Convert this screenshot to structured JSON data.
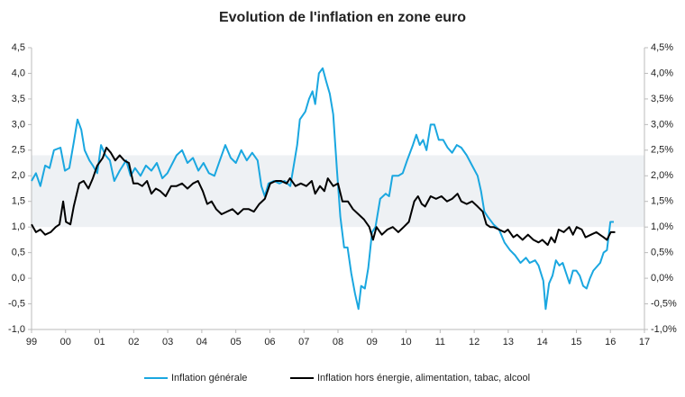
{
  "chart_data": {
    "type": "line",
    "title": "Evolution de l'inflation en zone  euro",
    "xlim": [
      1999,
      2017
    ],
    "xticks": [
      {
        "value": 1999,
        "label": "99"
      },
      {
        "value": 2000,
        "label": "00"
      },
      {
        "value": 2001,
        "label": "01"
      },
      {
        "value": 2002,
        "label": "02"
      },
      {
        "value": 2003,
        "label": "03"
      },
      {
        "value": 2004,
        "label": "04"
      },
      {
        "value": 2005,
        "label": "05"
      },
      {
        "value": 2006,
        "label": "06"
      },
      {
        "value": 2007,
        "label": "07"
      },
      {
        "value": 2008,
        "label": "08"
      },
      {
        "value": 2009,
        "label": "09"
      },
      {
        "value": 2010,
        "label": "10"
      },
      {
        "value": 2011,
        "label": "11"
      },
      {
        "value": 2012,
        "label": "12"
      },
      {
        "value": 2013,
        "label": "13"
      },
      {
        "value": 2014,
        "label": "14"
      },
      {
        "value": 2015,
        "label": "15"
      },
      {
        "value": 2016,
        "label": "16"
      },
      {
        "value": 2017,
        "label": "17"
      }
    ],
    "ylim": [
      -1,
      4.5
    ],
    "yticks": [
      {
        "value": -1,
        "label": "-1,0"
      },
      {
        "value": -0.5,
        "label": "-0,5"
      },
      {
        "value": 0,
        "label": "0,0"
      },
      {
        "value": 0.5,
        "label": "0,5"
      },
      {
        "value": 1,
        "label": "1,0"
      },
      {
        "value": 1.5,
        "label": "1,5"
      },
      {
        "value": 2,
        "label": "2,0"
      },
      {
        "value": 2.5,
        "label": "2,5"
      },
      {
        "value": 3,
        "label": "3,0"
      },
      {
        "value": 3.5,
        "label": "3,5"
      },
      {
        "value": 4,
        "label": "4,0"
      },
      {
        "value": 4.5,
        "label": "4,5"
      }
    ],
    "y2lim": [
      -1,
      4.5
    ],
    "y2ticks": [
      {
        "value": -1,
        "label": "-1,0%"
      },
      {
        "value": -0.5,
        "label": "-0,5%"
      },
      {
        "value": 0,
        "label": "0,0%"
      },
      {
        "value": 0.5,
        "label": "0,5%"
      },
      {
        "value": 1,
        "label": "1,0%"
      },
      {
        "value": 1.5,
        "label": "1,5%"
      },
      {
        "value": 2,
        "label": "2,0%"
      },
      {
        "value": 2.5,
        "label": "2,5%"
      },
      {
        "value": 3,
        "label": "3,0%"
      },
      {
        "value": 3.5,
        "label": "3,5%"
      },
      {
        "value": 4,
        "label": "4,0%"
      },
      {
        "value": 4.5,
        "label": "4,5%"
      }
    ],
    "band": {
      "ylim": [
        1,
        2.4
      ],
      "color": "#eef1f4"
    },
    "series": [
      {
        "name": "Inflation générale",
        "color": "#1aa7e0",
        "x": [
          1999.0,
          1999.13,
          1999.26,
          1999.4,
          1999.53,
          1999.66,
          1999.85,
          1999.98,
          2000.11,
          2000.24,
          2000.35,
          2000.46,
          2000.56,
          2000.7,
          2000.8,
          2000.93,
          2001.04,
          2001.17,
          2001.3,
          2001.43,
          2001.59,
          2001.78,
          2001.91,
          2002.04,
          2002.2,
          2002.36,
          2002.52,
          2002.68,
          2002.84,
          2002.99,
          2003.26,
          2003.42,
          2003.58,
          2003.74,
          2003.9,
          2004.05,
          2004.21,
          2004.37,
          2004.53,
          2004.69,
          2004.85,
          2005.0,
          2005.16,
          2005.32,
          2005.48,
          2005.64,
          2005.75,
          2005.85,
          2005.96,
          2006.12,
          2006.28,
          2006.43,
          2006.6,
          2006.7,
          2006.8,
          2006.88,
          2007.04,
          2007.15,
          2007.25,
          2007.33,
          2007.44,
          2007.55,
          2007.65,
          2007.76,
          2007.86,
          2007.97,
          2008.07,
          2008.18,
          2008.28,
          2008.39,
          2008.5,
          2008.6,
          2008.68,
          2008.79,
          2008.89,
          2009.0,
          2009.1,
          2009.24,
          2009.4,
          2009.5,
          2009.6,
          2009.77,
          2009.9,
          2010.03,
          2010.2,
          2010.3,
          2010.4,
          2010.5,
          2010.6,
          2010.72,
          2010.83,
          2010.96,
          2011.09,
          2011.22,
          2011.35,
          2011.49,
          2011.62,
          2011.78,
          2011.94,
          2012.1,
          2012.2,
          2012.3,
          2012.4,
          2012.57,
          2012.73,
          2012.89,
          2013.05,
          2013.2,
          2013.36,
          2013.52,
          2013.63,
          2013.79,
          2013.89,
          2014.03,
          2014.1,
          2014.2,
          2014.3,
          2014.4,
          2014.5,
          2014.6,
          2014.7,
          2014.8,
          2014.9,
          2015.0,
          2015.1,
          2015.2,
          2015.3,
          2015.4,
          2015.5,
          2015.7,
          2015.8,
          2015.9,
          2016.0,
          2016.1
        ],
        "values": [
          1.9,
          2.05,
          1.8,
          2.2,
          2.15,
          2.5,
          2.55,
          2.1,
          2.15,
          2.65,
          3.1,
          2.9,
          2.5,
          2.3,
          2.2,
          2.05,
          2.6,
          2.4,
          2.3,
          1.9,
          2.1,
          2.3,
          2.0,
          2.15,
          2.0,
          2.2,
          2.1,
          2.25,
          1.95,
          2.05,
          2.4,
          2.5,
          2.25,
          2.35,
          2.1,
          2.25,
          2.05,
          2.0,
          2.3,
          2.6,
          2.35,
          2.25,
          2.5,
          2.3,
          2.45,
          2.3,
          1.8,
          1.6,
          1.85,
          1.9,
          1.85,
          1.9,
          1.8,
          2.2,
          2.6,
          3.1,
          3.25,
          3.5,
          3.65,
          3.4,
          4.0,
          4.1,
          3.85,
          3.6,
          3.2,
          2.1,
          1.2,
          0.6,
          0.6,
          0.1,
          -0.3,
          -0.6,
          -0.15,
          -0.2,
          0.2,
          0.9,
          1.0,
          1.55,
          1.65,
          1.6,
          2.0,
          2.0,
          2.05,
          2.3,
          2.6,
          2.8,
          2.6,
          2.7,
          2.5,
          3.0,
          3.0,
          2.7,
          2.7,
          2.55,
          2.45,
          2.6,
          2.55,
          2.4,
          2.2,
          2.0,
          1.7,
          1.3,
          1.2,
          1.05,
          0.95,
          0.7,
          0.55,
          0.45,
          0.3,
          0.4,
          0.3,
          0.35,
          0.25,
          -0.05,
          -0.6,
          -0.1,
          0.05,
          0.35,
          0.25,
          0.3,
          0.1,
          -0.1,
          0.15,
          0.15,
          0.05,
          -0.15,
          -0.2,
          0.0,
          0.15,
          0.3,
          0.5,
          0.55,
          1.1,
          1.1
        ]
      },
      {
        "name": "Inflation hors énergie, alimentation, tabac, alcool",
        "color": "#000000",
        "x": [
          1999.0,
          1999.13,
          1999.26,
          1999.4,
          1999.56,
          1999.71,
          1999.82,
          1999.93,
          2000.01,
          2000.14,
          2000.24,
          2000.4,
          2000.53,
          2000.67,
          2000.8,
          2000.93,
          2001.09,
          2001.2,
          2001.33,
          2001.46,
          2001.59,
          2001.72,
          2001.86,
          2001.99,
          2002.12,
          2002.25,
          2002.39,
          2002.52,
          2002.65,
          2002.78,
          2002.94,
          2003.1,
          2003.26,
          2003.42,
          2003.58,
          2003.74,
          2003.89,
          2004.03,
          2004.16,
          2004.29,
          2004.42,
          2004.58,
          2004.74,
          2004.9,
          2005.06,
          2005.22,
          2005.38,
          2005.53,
          2005.69,
          2005.85,
          2006.01,
          2006.17,
          2006.33,
          2006.49,
          2006.59,
          2006.75,
          2006.91,
          2007.07,
          2007.23,
          2007.33,
          2007.47,
          2007.6,
          2007.7,
          2007.86,
          2008.0,
          2008.13,
          2008.29,
          2008.44,
          2008.6,
          2008.76,
          2008.92,
          2009.03,
          2009.13,
          2009.29,
          2009.45,
          2009.61,
          2009.77,
          2009.93,
          2010.08,
          2010.24,
          2010.35,
          2010.46,
          2010.56,
          2010.72,
          2010.88,
          2011.04,
          2011.2,
          2011.35,
          2011.51,
          2011.62,
          2011.78,
          2011.94,
          2012.1,
          2012.25,
          2012.36,
          2012.47,
          2012.57,
          2012.73,
          2012.89,
          2012.99,
          2013.15,
          2013.26,
          2013.42,
          2013.58,
          2013.74,
          2013.89,
          2014.0,
          2014.16,
          2014.26,
          2014.37,
          2014.48,
          2014.63,
          2014.79,
          2014.9,
          2015.01,
          2015.16,
          2015.27,
          2015.43,
          2015.59,
          2015.69,
          2015.8,
          2015.9,
          2016.01,
          2016.14
        ],
        "values": [
          1.05,
          0.9,
          0.95,
          0.85,
          0.9,
          1.0,
          1.05,
          1.5,
          1.1,
          1.05,
          1.4,
          1.85,
          1.9,
          1.75,
          1.95,
          2.2,
          2.35,
          2.55,
          2.45,
          2.3,
          2.4,
          2.3,
          2.25,
          1.85,
          1.85,
          1.8,
          1.9,
          1.65,
          1.75,
          1.7,
          1.6,
          1.8,
          1.8,
          1.85,
          1.75,
          1.85,
          1.9,
          1.7,
          1.45,
          1.5,
          1.35,
          1.25,
          1.3,
          1.35,
          1.25,
          1.35,
          1.35,
          1.3,
          1.45,
          1.55,
          1.85,
          1.9,
          1.9,
          1.85,
          1.95,
          1.8,
          1.85,
          1.8,
          1.9,
          1.65,
          1.8,
          1.7,
          1.95,
          1.8,
          1.85,
          1.5,
          1.5,
          1.35,
          1.25,
          1.15,
          1.0,
          0.75,
          1.0,
          0.85,
          0.95,
          1.0,
          0.9,
          1.0,
          1.1,
          1.5,
          1.6,
          1.45,
          1.4,
          1.6,
          1.55,
          1.6,
          1.5,
          1.55,
          1.65,
          1.5,
          1.45,
          1.5,
          1.4,
          1.3,
          1.05,
          1.0,
          1.0,
          0.95,
          0.9,
          0.95,
          0.8,
          0.85,
          0.75,
          0.85,
          0.75,
          0.7,
          0.75,
          0.65,
          0.8,
          0.7,
          0.95,
          0.9,
          1.0,
          0.85,
          1.0,
          0.95,
          0.8,
          0.85,
          0.9,
          0.85,
          0.8,
          0.75,
          0.9,
          0.9
        ]
      }
    ]
  }
}
